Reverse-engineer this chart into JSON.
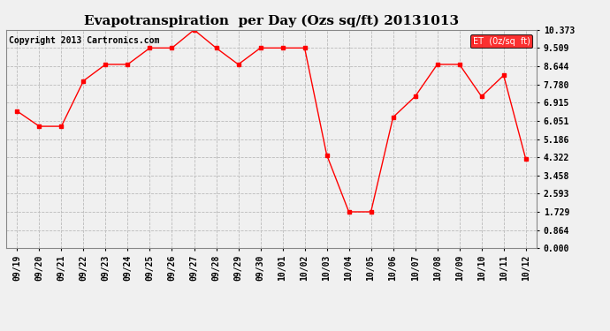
{
  "title": "Evapotranspiration  per Day (Ozs sq/ft) 20131013",
  "copyright": "Copyright 2013 Cartronics.com",
  "legend_label": "ET  (0z/sq  ft)",
  "x_labels": [
    "09/19",
    "09/20",
    "09/21",
    "09/22",
    "09/23",
    "09/24",
    "09/25",
    "09/26",
    "09/27",
    "09/28",
    "09/29",
    "09/30",
    "10/01",
    "10/02",
    "10/03",
    "10/04",
    "10/05",
    "10/06",
    "10/07",
    "10/08",
    "10/09",
    "10/10",
    "10/11",
    "10/12"
  ],
  "y_values": [
    6.51,
    5.79,
    5.79,
    7.95,
    8.73,
    8.73,
    9.51,
    9.51,
    10.37,
    9.51,
    8.73,
    9.51,
    9.51,
    9.51,
    4.43,
    1.73,
    1.73,
    6.22,
    7.21,
    8.73,
    8.73,
    7.21,
    8.21,
    4.24
  ],
  "y_ticks": [
    0.0,
    0.864,
    1.729,
    2.593,
    3.458,
    4.322,
    5.186,
    6.051,
    6.915,
    7.78,
    8.644,
    9.509,
    10.373
  ],
  "line_color": "red",
  "marker": "s",
  "marker_size": 3,
  "background_color": "#f0f0f0",
  "grid_color": "#bbbbbb",
  "legend_bg": "red",
  "legend_fg": "white",
  "ylim": [
    0.0,
    10.373
  ],
  "title_fontsize": 11,
  "tick_fontsize": 7,
  "copyright_fontsize": 7,
  "legend_fontsize": 7
}
